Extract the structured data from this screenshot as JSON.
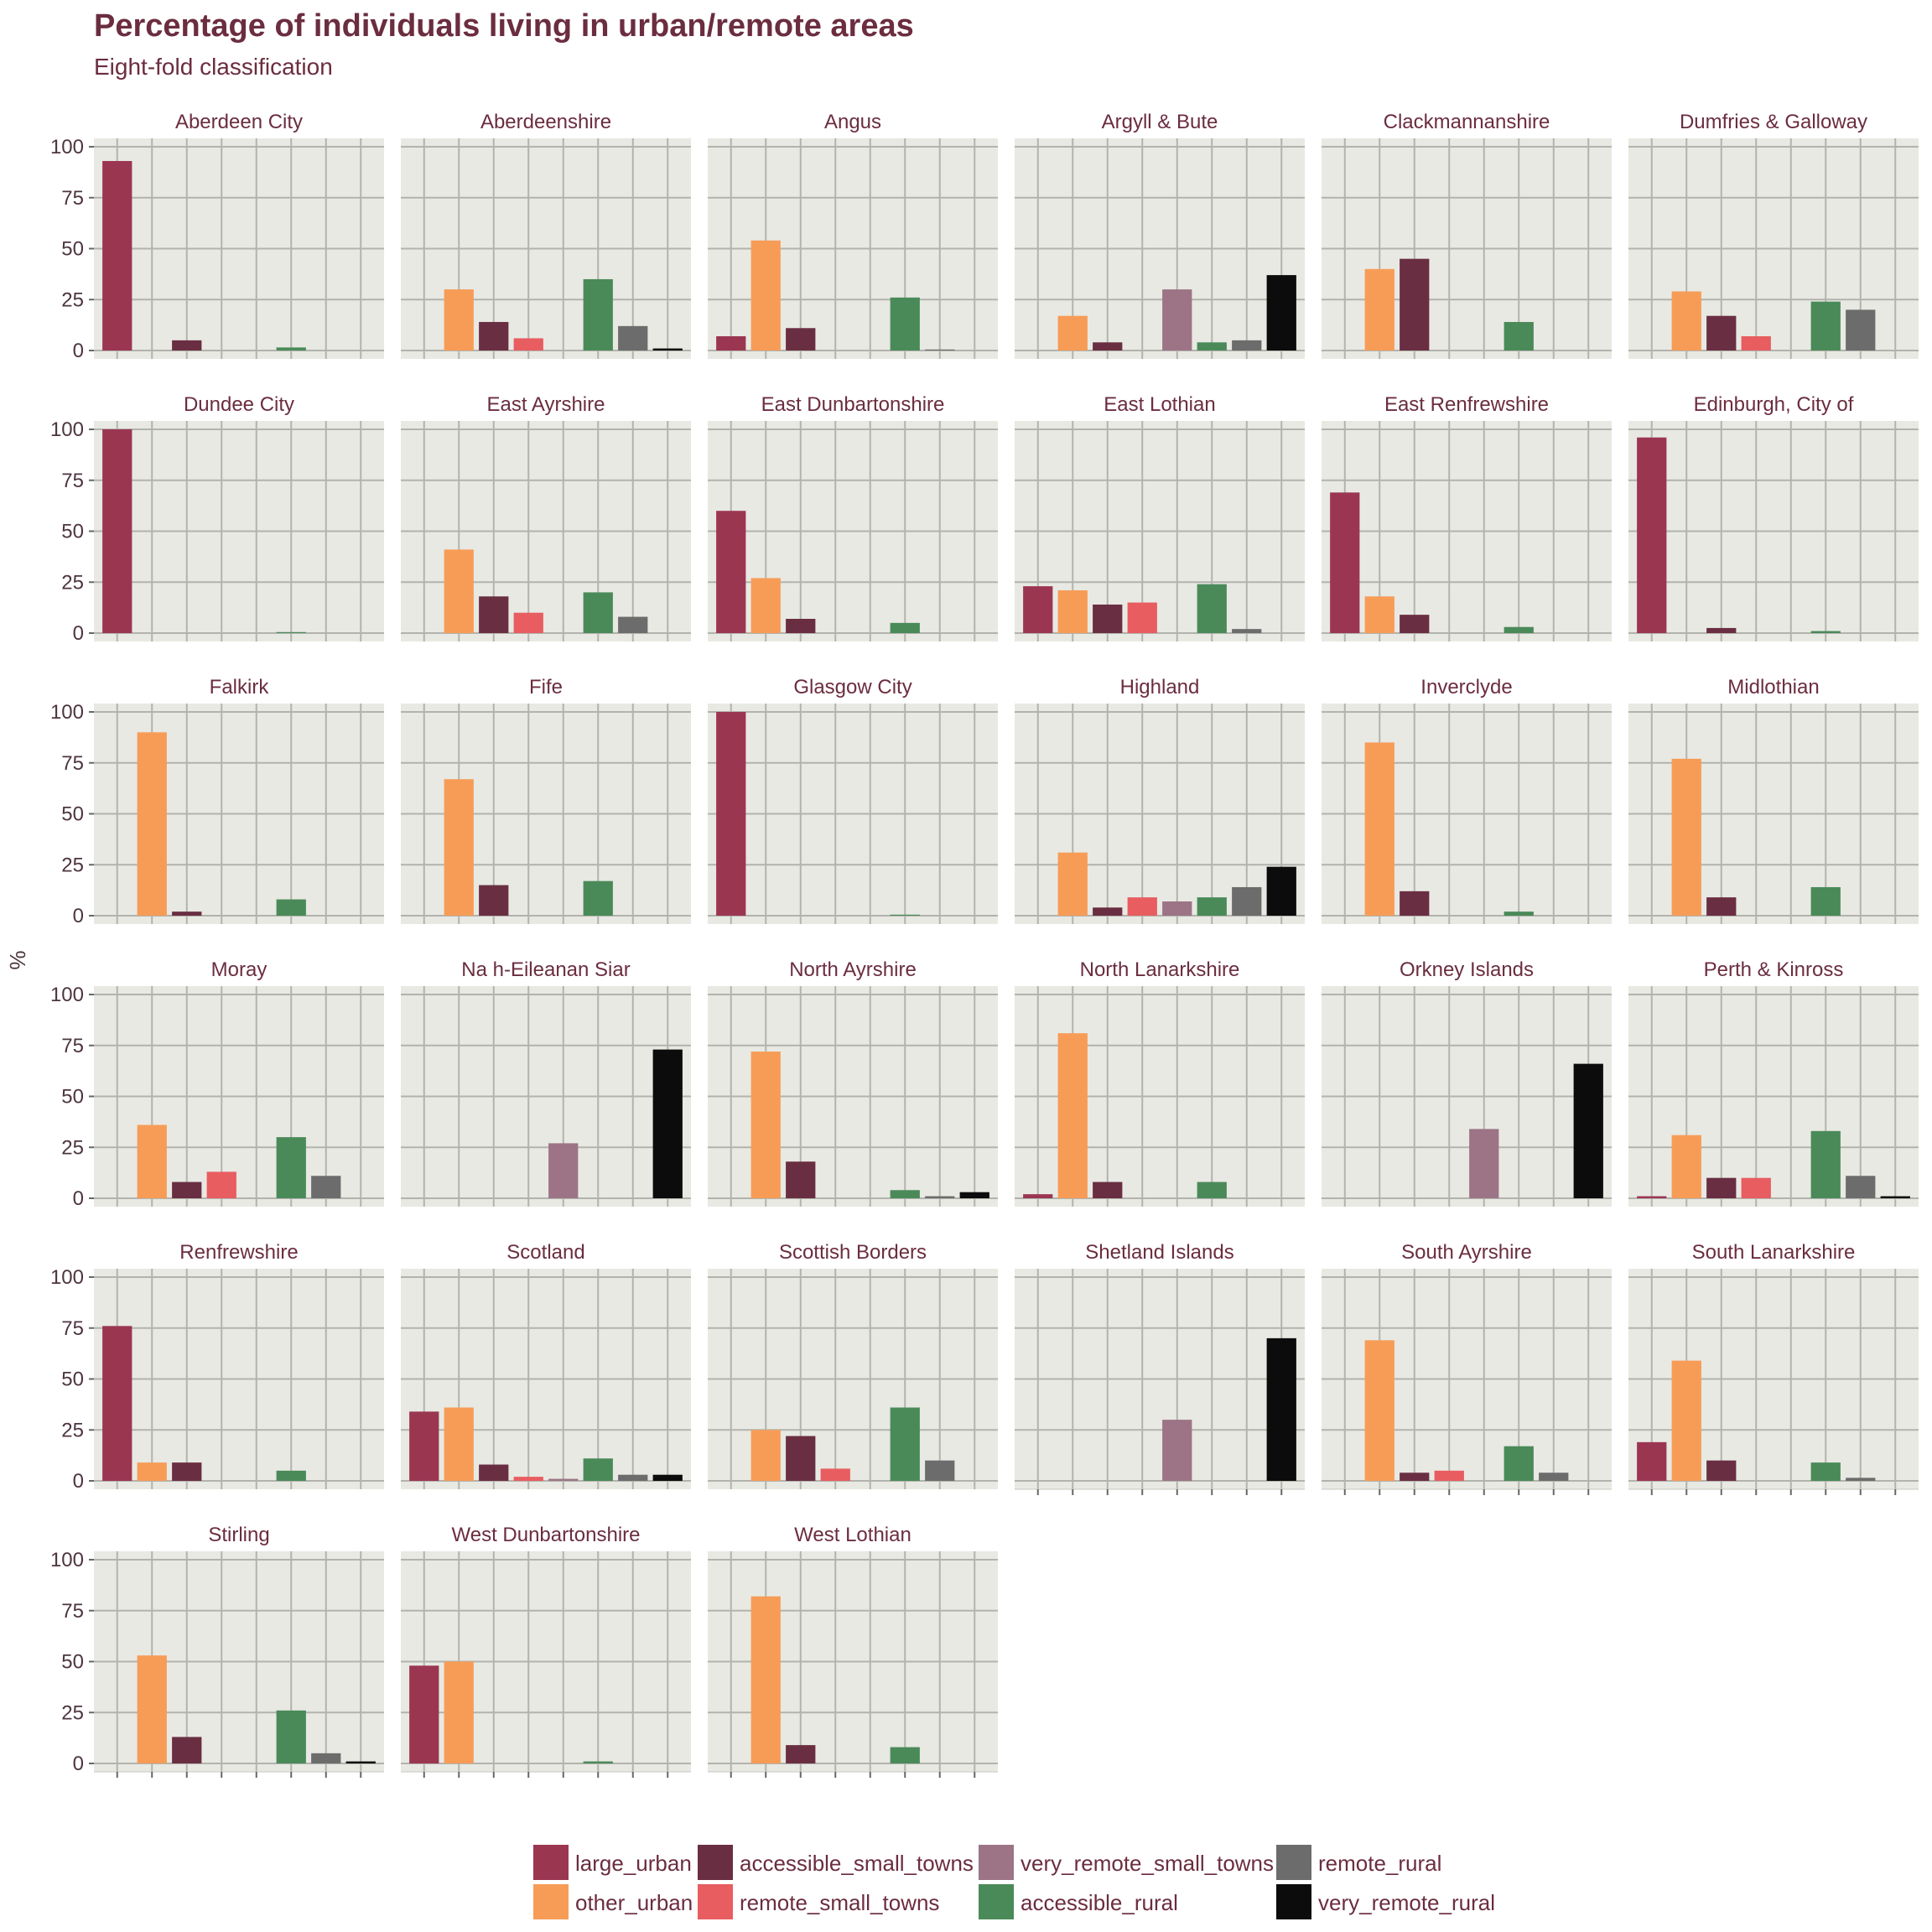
{
  "chart_data": {
    "type": "bar",
    "title": "Percentage of individuals living in urban/remote areas",
    "subtitle": "Eight-fold classification",
    "ylabel": "%",
    "xlabel": "",
    "ylim": [
      0,
      100
    ],
    "yticks": [
      0,
      25,
      50,
      75,
      100
    ],
    "grid": true,
    "legend_position": "bottom",
    "categories": [
      "large_urban",
      "other_urban",
      "accessible_small_towns",
      "remote_small_towns",
      "very_remote_small_towns",
      "accessible_rural",
      "remote_rural",
      "very_remote_rural"
    ],
    "colors": [
      "#9b3651",
      "#f79c57",
      "#6a2e42",
      "#e85d60",
      "#9c7486",
      "#4a8a59",
      "#6c6c6c",
      "#0c0c0c"
    ],
    "legend": {
      "columns": [
        [
          "large_urban",
          "other_urban"
        ],
        [
          "accessible_small_towns",
          "remote_small_towns"
        ],
        [
          "very_remote_small_towns",
          "accessible_rural"
        ],
        [
          "remote_rural",
          "very_remote_rural"
        ]
      ]
    },
    "panels": [
      {
        "name": "Aberdeen City",
        "values": [
          93,
          0,
          5,
          0,
          0,
          1.5,
          0,
          0
        ]
      },
      {
        "name": "Aberdeenshire",
        "values": [
          0,
          30,
          14,
          6,
          0,
          35,
          12,
          1
        ]
      },
      {
        "name": "Angus",
        "values": [
          7,
          54,
          11,
          0,
          0,
          26,
          0.5,
          0
        ]
      },
      {
        "name": "Argyll & Bute",
        "values": [
          0,
          17,
          4,
          0,
          30,
          4,
          5,
          37
        ]
      },
      {
        "name": "Clackmannanshire",
        "values": [
          0,
          40,
          45,
          0,
          0,
          14,
          0,
          0
        ]
      },
      {
        "name": "Dumfries & Galloway",
        "values": [
          0,
          29,
          17,
          7,
          0,
          24,
          20,
          0
        ]
      },
      {
        "name": "Dundee City",
        "values": [
          100,
          0,
          0,
          0,
          0,
          0.5,
          0,
          0
        ]
      },
      {
        "name": "East Ayrshire",
        "values": [
          0,
          41,
          18,
          10,
          0,
          20,
          8,
          0
        ]
      },
      {
        "name": "East Dunbartonshire",
        "values": [
          60,
          27,
          7,
          0,
          0,
          5,
          0,
          0
        ]
      },
      {
        "name": "East Lothian",
        "values": [
          23,
          21,
          14,
          15,
          0,
          24,
          2,
          0
        ]
      },
      {
        "name": "East Renfrewshire",
        "values": [
          69,
          18,
          9,
          0,
          0,
          3,
          0,
          0
        ]
      },
      {
        "name": "Edinburgh, City of",
        "values": [
          96,
          0,
          2.5,
          0,
          0,
          1,
          0,
          0
        ]
      },
      {
        "name": "Falkirk",
        "values": [
          0,
          90,
          2,
          0,
          0,
          8,
          0,
          0
        ]
      },
      {
        "name": "Fife",
        "values": [
          0,
          67,
          15,
          0,
          0,
          17,
          0,
          0
        ]
      },
      {
        "name": "Glasgow City",
        "values": [
          100,
          0,
          0,
          0,
          0,
          0.5,
          0,
          0
        ]
      },
      {
        "name": "Highland",
        "values": [
          0,
          31,
          4,
          9,
          7,
          9,
          14,
          24
        ]
      },
      {
        "name": "Inverclyde",
        "values": [
          0,
          85,
          12,
          0,
          0,
          2,
          0,
          0
        ]
      },
      {
        "name": "Midlothian",
        "values": [
          0,
          77,
          9,
          0,
          0,
          14,
          0,
          0
        ]
      },
      {
        "name": "Moray",
        "values": [
          0,
          36,
          8,
          13,
          0,
          30,
          11,
          0
        ]
      },
      {
        "name": "Na h-Eileanan Siar",
        "values": [
          0,
          0,
          0,
          0,
          27,
          0,
          0,
          73
        ]
      },
      {
        "name": "North Ayrshire",
        "values": [
          0,
          72,
          18,
          0,
          0,
          4,
          1,
          3
        ]
      },
      {
        "name": "North Lanarkshire",
        "values": [
          2,
          81,
          8,
          0,
          0,
          8,
          0,
          0
        ]
      },
      {
        "name": "Orkney Islands",
        "values": [
          0,
          0,
          0,
          0,
          34,
          0,
          0,
          66
        ]
      },
      {
        "name": "Perth & Kinross",
        "values": [
          1,
          31,
          10,
          10,
          0,
          33,
          11,
          1
        ]
      },
      {
        "name": "Renfrewshire",
        "values": [
          76,
          9,
          9,
          0,
          0,
          5,
          0,
          0
        ]
      },
      {
        "name": "Scotland",
        "values": [
          34,
          36,
          8,
          2,
          1,
          11,
          3,
          3
        ]
      },
      {
        "name": "Scottish Borders",
        "values": [
          0,
          25,
          22,
          6,
          0,
          36,
          10,
          0
        ]
      },
      {
        "name": "Shetland Islands",
        "values": [
          0,
          0,
          0,
          0,
          30,
          0,
          0,
          70
        ]
      },
      {
        "name": "South Ayrshire",
        "values": [
          0,
          69,
          4,
          5,
          0,
          17,
          4,
          0
        ]
      },
      {
        "name": "South Lanarkshire",
        "values": [
          19,
          59,
          10,
          0,
          0,
          9,
          1.5,
          0
        ]
      },
      {
        "name": "Stirling",
        "values": [
          0,
          53,
          13,
          0,
          0,
          26,
          5,
          1
        ]
      },
      {
        "name": "West Dunbartonshire",
        "values": [
          48,
          50,
          0,
          0,
          0,
          1,
          0,
          0
        ]
      },
      {
        "name": "West Lothian",
        "values": [
          0,
          82,
          9,
          0,
          0,
          8,
          0,
          0
        ]
      }
    ]
  }
}
